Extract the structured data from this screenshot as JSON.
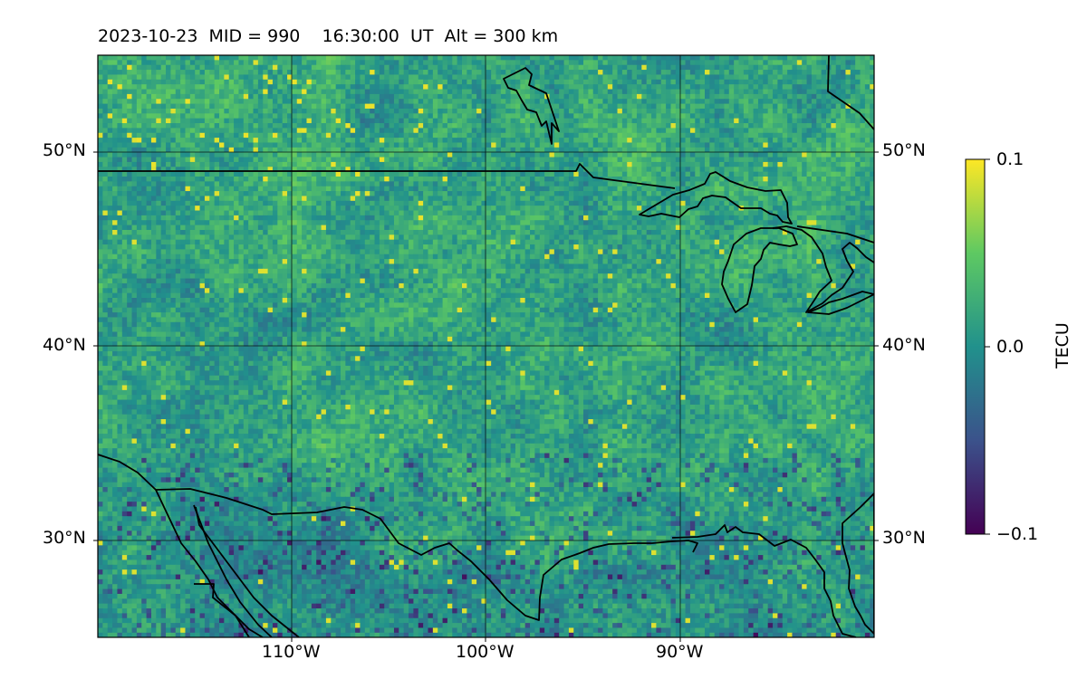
{
  "figure": {
    "title": "2023-10-23  MID = 990    16:30:00  UT  Alt = 300 km"
  },
  "map": {
    "projection": "plate-carree",
    "extent": {
      "lon": [
        -120,
        -80
      ],
      "lat": [
        25,
        55
      ]
    },
    "lat_ticks": [
      {
        "value": 50,
        "label": "50°N"
      },
      {
        "value": 40,
        "label": "40°N"
      },
      {
        "value": 30,
        "label": "30°N"
      }
    ],
    "lon_ticks": [
      {
        "value": -110,
        "label": "110°W"
      },
      {
        "value": -100,
        "label": "100°W"
      },
      {
        "value": -90,
        "label": "90°W"
      }
    ],
    "gridlines": true,
    "colormap": "viridis",
    "field": "differential TEC, noisy pixel field with scattered positive peaks over the northern plains and negative lows near the Gulf coast",
    "coastlines": true
  },
  "colorbar": {
    "label": "TECU",
    "min": -0.1,
    "max": 0.1,
    "ticks": [
      {
        "value": 0.1,
        "label": "0.1"
      },
      {
        "value": 0.0,
        "label": "0.0"
      },
      {
        "value": -0.1,
        "label": "−0.1"
      }
    ],
    "colors": [
      "#440154",
      "#3b528b",
      "#21918c",
      "#5ec962",
      "#fde725"
    ]
  }
}
